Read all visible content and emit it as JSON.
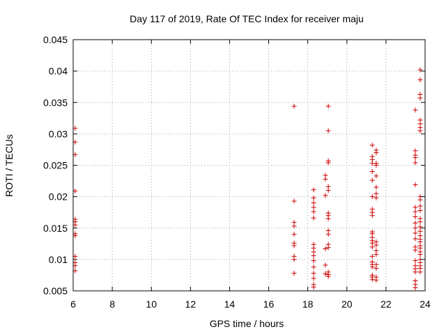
{
  "chart_data": {
    "type": "scatter",
    "title": "Day 117 of 2019, Rate Of TEC Index for receiver maju",
    "xlabel": "GPS time / hours",
    "ylabel": "ROTI / TECUs",
    "xlim": [
      6,
      24
    ],
    "ylim": [
      0.005,
      0.045
    ],
    "x_ticks": [
      6,
      8,
      10,
      12,
      14,
      16,
      18,
      20,
      22,
      24
    ],
    "y_ticks": [
      0.005,
      0.01,
      0.015,
      0.02,
      0.025,
      0.03,
      0.035,
      0.04,
      0.045
    ],
    "x_tick_labels": [
      "6",
      "8",
      "10",
      "12",
      "14",
      "16",
      "18",
      "20",
      "22",
      "24"
    ],
    "y_tick_labels": [
      "0.005",
      "0.01",
      "0.015",
      "0.02",
      "0.025",
      "0.03",
      "0.035",
      "0.04",
      "0.045"
    ],
    "grid": true,
    "marker": "+",
    "marker_color": "#cc0000",
    "series": [
      {
        "name": "ROTI",
        "points": [
          [
            6.1,
            0.0309
          ],
          [
            6.1,
            0.0287
          ],
          [
            6.1,
            0.0267
          ],
          [
            6.1,
            0.0209
          ],
          [
            6.1,
            0.0164
          ],
          [
            6.1,
            0.016
          ],
          [
            6.1,
            0.0155
          ],
          [
            6.1,
            0.0141
          ],
          [
            6.1,
            0.0138
          ],
          [
            6.1,
            0.0105
          ],
          [
            6.1,
            0.0095
          ],
          [
            6.1,
            0.009
          ],
          [
            6.1,
            0.0082
          ],
          [
            17.3,
            0.0344
          ],
          [
            17.3,
            0.0193
          ],
          [
            17.3,
            0.0159
          ],
          [
            17.3,
            0.0153
          ],
          [
            17.3,
            0.014
          ],
          [
            17.3,
            0.0126
          ],
          [
            17.3,
            0.0122
          ],
          [
            17.3,
            0.0105
          ],
          [
            17.3,
            0.01
          ],
          [
            17.3,
            0.0078
          ],
          [
            18.3,
            0.0211
          ],
          [
            18.3,
            0.0198
          ],
          [
            18.3,
            0.019
          ],
          [
            18.3,
            0.0183
          ],
          [
            18.3,
            0.0176
          ],
          [
            18.3,
            0.0166
          ],
          [
            18.3,
            0.0124
          ],
          [
            18.3,
            0.0118
          ],
          [
            18.3,
            0.0112
          ],
          [
            18.3,
            0.0106
          ],
          [
            18.3,
            0.0098
          ],
          [
            18.3,
            0.0088
          ],
          [
            18.3,
            0.0078
          ],
          [
            18.3,
            0.007
          ],
          [
            18.3,
            0.006
          ],
          [
            18.3,
            0.0056
          ],
          [
            18.9,
            0.0234
          ],
          [
            18.9,
            0.0228
          ],
          [
            18.9,
            0.0202
          ],
          [
            18.9,
            0.0117
          ],
          [
            18.9,
            0.0091
          ],
          [
            18.9,
            0.0077
          ],
          [
            19.05,
            0.0344
          ],
          [
            19.05,
            0.0305
          ],
          [
            19.05,
            0.0257
          ],
          [
            19.05,
            0.0254
          ],
          [
            19.05,
            0.0216
          ],
          [
            19.05,
            0.021
          ],
          [
            19.05,
            0.0174
          ],
          [
            19.05,
            0.017
          ],
          [
            19.05,
            0.0165
          ],
          [
            19.05,
            0.0146
          ],
          [
            19.05,
            0.014
          ],
          [
            19.05,
            0.0124
          ],
          [
            19.05,
            0.0119
          ],
          [
            19.05,
            0.008
          ],
          [
            19.05,
            0.0076
          ],
          [
            19.05,
            0.0073
          ],
          [
            21.3,
            0.0282
          ],
          [
            21.3,
            0.0264
          ],
          [
            21.3,
            0.0259
          ],
          [
            21.3,
            0.0253
          ],
          [
            21.3,
            0.024
          ],
          [
            21.3,
            0.0226
          ],
          [
            21.3,
            0.02
          ],
          [
            21.3,
            0.018
          ],
          [
            21.3,
            0.0175
          ],
          [
            21.3,
            0.017
          ],
          [
            21.3,
            0.0144
          ],
          [
            21.3,
            0.0141
          ],
          [
            21.3,
            0.0135
          ],
          [
            21.3,
            0.013
          ],
          [
            21.3,
            0.0126
          ],
          [
            21.3,
            0.012
          ],
          [
            21.3,
            0.0105
          ],
          [
            21.3,
            0.0096
          ],
          [
            21.3,
            0.0092
          ],
          [
            21.3,
            0.0088
          ],
          [
            21.3,
            0.0075
          ],
          [
            21.3,
            0.0072
          ],
          [
            21.3,
            0.0068
          ],
          [
            21.5,
            0.0274
          ],
          [
            21.5,
            0.027
          ],
          [
            21.5,
            0.0253
          ],
          [
            21.5,
            0.025
          ],
          [
            21.5,
            0.0233
          ],
          [
            21.5,
            0.0215
          ],
          [
            21.5,
            0.0205
          ],
          [
            21.5,
            0.0198
          ],
          [
            21.5,
            0.0128
          ],
          [
            21.5,
            0.0123
          ],
          [
            21.5,
            0.0114
          ],
          [
            21.5,
            0.0108
          ],
          [
            21.5,
            0.0092
          ],
          [
            21.5,
            0.0086
          ],
          [
            21.5,
            0.0072
          ],
          [
            21.5,
            0.0067
          ],
          [
            23.5,
            0.0338
          ],
          [
            23.5,
            0.0273
          ],
          [
            23.5,
            0.0266
          ],
          [
            23.5,
            0.0262
          ],
          [
            23.5,
            0.0254
          ],
          [
            23.5,
            0.0219
          ],
          [
            23.5,
            0.0183
          ],
          [
            23.5,
            0.0176
          ],
          [
            23.5,
            0.0168
          ],
          [
            23.5,
            0.0158
          ],
          [
            23.5,
            0.015
          ],
          [
            23.5,
            0.0142
          ],
          [
            23.5,
            0.0133
          ],
          [
            23.5,
            0.012
          ],
          [
            23.5,
            0.0115
          ],
          [
            23.5,
            0.0098
          ],
          [
            23.5,
            0.009
          ],
          [
            23.5,
            0.0085
          ],
          [
            23.5,
            0.008
          ],
          [
            23.5,
            0.0066
          ],
          [
            23.5,
            0.006
          ],
          [
            23.5,
            0.0055
          ],
          [
            23.75,
            0.0402
          ],
          [
            23.75,
            0.0386
          ],
          [
            23.75,
            0.0363
          ],
          [
            23.75,
            0.0357
          ],
          [
            23.75,
            0.0322
          ],
          [
            23.75,
            0.0316
          ],
          [
            23.75,
            0.031
          ],
          [
            23.75,
            0.0305
          ],
          [
            23.75,
            0.02
          ],
          [
            23.75,
            0.0195
          ],
          [
            23.75,
            0.0185
          ],
          [
            23.75,
            0.0178
          ],
          [
            23.75,
            0.0165
          ],
          [
            23.75,
            0.016
          ],
          [
            23.75,
            0.0152
          ],
          [
            23.75,
            0.0145
          ],
          [
            23.75,
            0.0138
          ],
          [
            23.75,
            0.0132
          ],
          [
            23.75,
            0.0128
          ],
          [
            23.75,
            0.0122
          ],
          [
            23.75,
            0.0118
          ],
          [
            23.75,
            0.0112
          ],
          [
            23.75,
            0.0108
          ],
          [
            23.75,
            0.01
          ],
          [
            23.75,
            0.0095
          ],
          [
            23.75,
            0.009
          ],
          [
            23.75,
            0.0086
          ],
          [
            23.75,
            0.008
          ]
        ]
      }
    ]
  }
}
